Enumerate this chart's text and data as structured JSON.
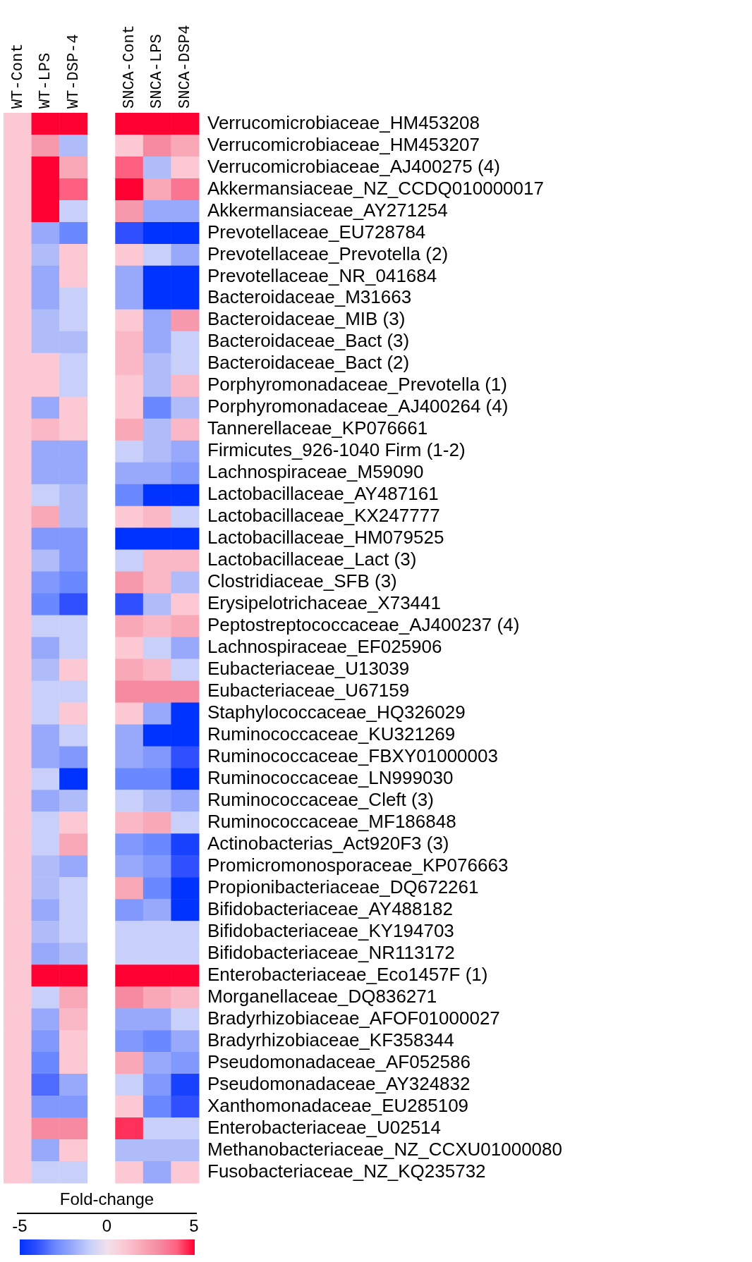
{
  "chart_data": {
    "type": "heatmap",
    "categories": [
      "WT-Cont",
      "WT-LPS",
      "WT-DSP-4",
      null,
      "SNCA-Cont",
      "SNCA-LPS",
      "SNCA-DSP4"
    ],
    "clim": [
      -5,
      5
    ],
    "cticks": [
      -5,
      0,
      5
    ],
    "clabel": "Fold-change",
    "y_categories": [
      "Verrucomicrobiaceae_HM453208",
      "Verrucomicrobiaceae_HM453207",
      "Verrucomicrobiaceae_AJ400275 (4)",
      "Akkermansiaceae_NZ_CCDQ010000017",
      "Akkermansiaceae_AY271254",
      "Prevotellaceae_EU728784",
      "Prevotellaceae_Prevotella (2)",
      "Prevotellaceae_NR_041684",
      "Bacteroidaceae_M31663",
      "Bacteroidaceae_MIB (3)",
      "Bacteroidaceae_Bact (3)",
      "Bacteroidaceae_Bact (2)",
      "Porphyromonadaceae_Prevotella (1)",
      "Porphyromonadaceae_AJ400264 (4)",
      "Tannerellaceae_KP076661",
      "Firmicutes_926-1040 Firm (1-2)",
      "Lachnospiraceae_M59090",
      "Lactobacillaceae_AY487161",
      "Lactobacillaceae_KX247777",
      "Lactobacillaceae_HM079525",
      "Lactobacillaceae_Lact (3)",
      "Clostridiaceae_SFB (3)",
      "Erysipelotrichaceae_X73441",
      "Peptostreptococcaceae_AJ400237 (4)",
      "Lachnospiraceae_EF025906",
      "Eubacteriaceae_U13039",
      "Eubacteriaceae_U67159",
      "Staphylococcaceae_HQ326029",
      "Ruminococcaceae_KU321269",
      "Ruminococcaceae_FBXY01000003",
      "Ruminococcaceae_LN999030",
      "Ruminococcaceae_Cleft (3)",
      "Ruminococcaceae_MF186848",
      "Actinobacterias_Act920F3 (3)",
      "Promicromonosporaceae_KP076663",
      "Propionibacteriaceae_DQ672261",
      "Bifidobacteriaceae_AY488182",
      "Bifidobacteriaceae_KY194703",
      "Bifidobacteriaceae_NR113172",
      "Enterobacteriaceae_Eco1457F (1)",
      "Morganellaceae_DQ836271",
      "Bradyrhizobiaceae_AFOF01000027",
      "Bradyrhizobiaceae_KF358344",
      "Pseudomonadaceae_AF052586",
      "Pseudomonadaceae_AY324832",
      "Xanthomonadaceae_EU285109",
      "Enterobacteriaceae_U02514",
      "Methanobacteriaceae_NZ_CCXU01000080",
      "Fusobacteriaceae_NZ_KQ235732"
    ],
    "cells": [
      [
        1,
        5,
        5,
        null,
        5,
        5,
        5
      ],
      [
        1,
        2.5,
        -1.5,
        null,
        1,
        3,
        2
      ],
      [
        1,
        5,
        2,
        null,
        4,
        -1.5,
        1
      ],
      [
        1,
        5,
        4,
        null,
        5,
        2,
        3.5
      ],
      [
        1,
        5,
        -1,
        null,
        2.5,
        -2,
        -2
      ],
      [
        1,
        -2,
        -3,
        null,
        -4,
        -5,
        -5
      ],
      [
        1,
        -1.5,
        1,
        null,
        1,
        -1,
        -2
      ],
      [
        1,
        -2,
        1,
        null,
        -2,
        -5,
        -5
      ],
      [
        1,
        -2,
        -1,
        null,
        -2,
        -5,
        -5
      ],
      [
        1,
        -1.5,
        -1,
        null,
        1,
        -2,
        2.5
      ],
      [
        1,
        -1.5,
        -1.5,
        null,
        1.5,
        -2,
        -1
      ],
      [
        1,
        1,
        -1,
        null,
        1.5,
        -1.5,
        -1
      ],
      [
        1,
        1,
        -1,
        null,
        1,
        -1.5,
        1.5
      ],
      [
        1,
        -2,
        1,
        null,
        1,
        -3,
        -1.5
      ],
      [
        1,
        1.5,
        1,
        null,
        2,
        -1.5,
        1.5
      ],
      [
        1,
        -2,
        -2,
        null,
        -1,
        -1.5,
        -2
      ],
      [
        1,
        -2,
        -2,
        null,
        -2,
        -2,
        -2.5
      ],
      [
        1,
        -1,
        -1.5,
        null,
        -3,
        -5,
        -5
      ],
      [
        1,
        2,
        -1.5,
        null,
        1,
        1.5,
        -1
      ],
      [
        1,
        -2.5,
        -2.5,
        null,
        -5,
        -5,
        -5
      ],
      [
        1,
        -1.5,
        -2.5,
        null,
        -1,
        1.5,
        1.5
      ],
      [
        1,
        -2.5,
        -3,
        null,
        2.5,
        1.5,
        -1.5
      ],
      [
        1,
        -3,
        -4,
        null,
        -4,
        -1.5,
        1
      ],
      [
        1,
        -1,
        -1,
        null,
        2,
        1.5,
        2
      ],
      [
        1,
        -2,
        -1,
        null,
        1,
        -1,
        -2
      ],
      [
        1,
        -1.5,
        1,
        null,
        2,
        1.5,
        -1
      ],
      [
        1,
        -1,
        -1,
        null,
        3,
        3,
        3
      ],
      [
        1,
        -1,
        1,
        null,
        1,
        -2,
        -5
      ],
      [
        1,
        -2,
        -1,
        null,
        -2,
        -5,
        -5
      ],
      [
        1,
        -2,
        -2.5,
        null,
        -2,
        -2.5,
        -4
      ],
      [
        1,
        -1,
        -5,
        null,
        -3,
        -3,
        -5
      ],
      [
        1,
        -2,
        -1.5,
        null,
        -1,
        -1.5,
        -2
      ],
      [
        1,
        -1,
        1,
        null,
        1.5,
        2,
        -1
      ],
      [
        1,
        -1,
        2,
        null,
        -2.5,
        -3,
        -4.5
      ],
      [
        1,
        -1.5,
        -2,
        null,
        -2,
        -2.5,
        -4
      ],
      [
        1,
        -1.5,
        -1,
        null,
        2,
        -3,
        -5
      ],
      [
        1,
        -2,
        -1,
        null,
        -2.5,
        -2,
        -5
      ],
      [
        1,
        -1.5,
        -1,
        null,
        -1,
        -1,
        -1
      ],
      [
        1,
        -2,
        -1.5,
        null,
        -1,
        -1,
        -1
      ],
      [
        1,
        5,
        5,
        null,
        5,
        5,
        5
      ],
      [
        1,
        -1,
        2,
        null,
        3,
        2,
        1.5
      ],
      [
        1,
        -2,
        1.5,
        null,
        -2,
        -2,
        -1
      ],
      [
        1,
        -2.5,
        1,
        null,
        -2.5,
        -3,
        -2
      ],
      [
        1,
        -3,
        1,
        null,
        2,
        -2,
        -2.5
      ],
      [
        1,
        -3.5,
        -2,
        null,
        -1,
        -2.5,
        -4.5
      ],
      [
        1,
        -2.5,
        -2.5,
        null,
        1,
        -3,
        -4
      ],
      [
        1,
        3,
        3,
        null,
        4.5,
        -1,
        -1
      ],
      [
        1,
        -2,
        1,
        null,
        -1.5,
        -1.5,
        -1.5
      ],
      [
        1,
        -1,
        -1,
        null,
        1,
        -2,
        1
      ]
    ]
  }
}
